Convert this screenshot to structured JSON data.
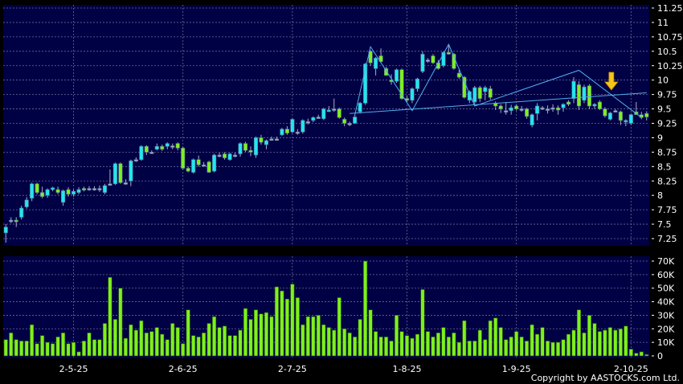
{
  "chart_data": [
    {
      "type": "candlestick",
      "colors": {
        "up": "#22e6f0",
        "down": "#7ef01e",
        "background": "#000044",
        "grid": "#6a6a9a",
        "trendline": "#4fb0f0",
        "arrow": "#f5c518"
      },
      "ylim": [
        7.25,
        11.25
      ],
      "y_ticks": [
        "11.25",
        "11",
        "10.75",
        "10.5",
        "10.25",
        "10",
        "9.75",
        "9.5",
        "9.25",
        "9",
        "8.75",
        "8.5",
        "8.25",
        "8",
        "7.75",
        "7.5",
        "7.25"
      ],
      "grid": true,
      "ohlc_columns": [
        "open",
        "high",
        "low",
        "close"
      ],
      "ohlc": [
        [
          7.35,
          7.5,
          7.18,
          7.45
        ],
        [
          7.57,
          7.62,
          7.52,
          7.57
        ],
        [
          7.57,
          7.62,
          7.45,
          7.55
        ],
        [
          7.62,
          7.82,
          7.58,
          7.78
        ],
        [
          7.8,
          7.97,
          7.77,
          7.92
        ],
        [
          7.95,
          8.22,
          7.9,
          8.2
        ],
        [
          8.2,
          8.22,
          8.02,
          8.05
        ],
        [
          8.05,
          8.15,
          7.95,
          7.98
        ],
        [
          8.0,
          8.12,
          7.96,
          8.1
        ],
        [
          8.1,
          8.15,
          8.07,
          8.13
        ],
        [
          8.1,
          8.15,
          8.02,
          8.05
        ],
        [
          7.88,
          8.1,
          7.82,
          8.08
        ],
        [
          8.1,
          8.14,
          7.98,
          8.02
        ],
        [
          8.02,
          8.1,
          7.98,
          8.07
        ],
        [
          8.05,
          8.14,
          8.02,
          8.1
        ],
        [
          8.12,
          8.15,
          8.07,
          8.1
        ],
        [
          8.12,
          8.16,
          8.08,
          8.12
        ],
        [
          8.12,
          8.16,
          8.08,
          8.12
        ],
        [
          8.12,
          8.17,
          8.06,
          8.12
        ],
        [
          8.05,
          8.2,
          8.02,
          8.17
        ],
        [
          8.2,
          8.45,
          8.17,
          8.2
        ],
        [
          8.2,
          8.57,
          8.18,
          8.55
        ],
        [
          8.55,
          8.57,
          8.2,
          8.22
        ],
        [
          8.22,
          8.28,
          8.18,
          8.22
        ],
        [
          8.25,
          8.62,
          8.16,
          8.6
        ],
        [
          8.62,
          8.66,
          8.58,
          8.62
        ],
        [
          8.62,
          8.87,
          8.6,
          8.85
        ],
        [
          8.85,
          8.87,
          8.7,
          8.75
        ],
        [
          8.75,
          8.78,
          8.72,
          8.75
        ],
        [
          8.8,
          8.9,
          8.78,
          8.85
        ],
        [
          8.85,
          8.88,
          8.77,
          8.8
        ],
        [
          8.85,
          8.92,
          8.8,
          8.9
        ],
        [
          8.86,
          8.9,
          8.8,
          8.86
        ],
        [
          8.9,
          8.92,
          8.78,
          8.82
        ],
        [
          8.82,
          8.84,
          8.45,
          8.47
        ],
        [
          8.47,
          8.5,
          8.4,
          8.42
        ],
        [
          8.4,
          8.64,
          8.38,
          8.62
        ],
        [
          8.62,
          8.69,
          8.5,
          8.53
        ],
        [
          8.53,
          8.58,
          8.5,
          8.53
        ],
        [
          8.58,
          8.6,
          8.39,
          8.4
        ],
        [
          8.42,
          8.72,
          8.4,
          8.7
        ],
        [
          8.7,
          8.74,
          8.66,
          8.7
        ],
        [
          8.72,
          8.75,
          8.62,
          8.65
        ],
        [
          8.62,
          8.74,
          8.6,
          8.72
        ],
        [
          8.7,
          8.74,
          8.66,
          8.7
        ],
        [
          8.72,
          8.92,
          8.67,
          8.9
        ],
        [
          8.9,
          8.93,
          8.75,
          8.78
        ],
        [
          8.78,
          8.85,
          8.68,
          8.75
        ],
        [
          8.7,
          9.02,
          8.65,
          9.0
        ],
        [
          9.0,
          9.05,
          8.88,
          8.92
        ],
        [
          8.88,
          8.97,
          8.8,
          8.95
        ],
        [
          8.98,
          9.02,
          8.95,
          8.98
        ],
        [
          8.98,
          9.02,
          8.95,
          8.98
        ],
        [
          9.05,
          9.17,
          9.03,
          9.15
        ],
        [
          9.15,
          9.2,
          9.05,
          9.08
        ],
        [
          9.1,
          9.33,
          9.08,
          9.32
        ],
        [
          9.1,
          9.15,
          9.05,
          9.1
        ],
        [
          9.1,
          9.32,
          9.07,
          9.3
        ],
        [
          9.28,
          9.33,
          9.23,
          9.28
        ],
        [
          9.3,
          9.37,
          9.27,
          9.35
        ],
        [
          9.36,
          9.4,
          9.33,
          9.36
        ],
        [
          9.33,
          9.52,
          9.31,
          9.5
        ],
        [
          9.46,
          9.55,
          9.45,
          9.48
        ],
        [
          9.5,
          9.68,
          9.45,
          9.5
        ],
        [
          9.5,
          9.52,
          9.33,
          9.35
        ],
        [
          9.32,
          9.35,
          9.2,
          9.25
        ],
        [
          9.25,
          9.28,
          9.2,
          9.25
        ],
        [
          9.25,
          9.4,
          9.24,
          9.36
        ],
        [
          9.45,
          9.62,
          9.42,
          9.6
        ],
        [
          9.6,
          10.3,
          9.57,
          10.28
        ],
        [
          10.5,
          10.52,
          10.25,
          10.3
        ],
        [
          10.2,
          10.4,
          10.08,
          10.38
        ],
        [
          10.42,
          10.55,
          10.3,
          10.32
        ],
        [
          10.2,
          10.23,
          10.08,
          10.08
        ],
        [
          10.0,
          10.1,
          9.92,
          9.98
        ],
        [
          9.98,
          10.2,
          9.95,
          10.18
        ],
        [
          10.18,
          10.2,
          9.66,
          9.68
        ],
        [
          9.68,
          9.72,
          9.62,
          9.65
        ],
        [
          9.65,
          9.87,
          9.6,
          9.85
        ],
        [
          9.85,
          10.04,
          9.8,
          10.02
        ],
        [
          10.15,
          10.5,
          10.12,
          10.45
        ],
        [
          10.35,
          10.38,
          10.3,
          10.35
        ],
        [
          10.42,
          10.45,
          10.28,
          10.3
        ],
        [
          10.3,
          10.35,
          10.18,
          10.2
        ],
        [
          10.25,
          10.5,
          10.22,
          10.48
        ],
        [
          10.48,
          10.62,
          10.44,
          10.45
        ],
        [
          10.45,
          10.47,
          10.18,
          10.2
        ],
        [
          10.12,
          10.18,
          10.02,
          10.05
        ],
        [
          10.05,
          10.07,
          9.68,
          9.7
        ],
        [
          9.65,
          9.82,
          9.6,
          9.8
        ],
        [
          9.62,
          9.9,
          9.58,
          9.87
        ],
        [
          9.87,
          9.9,
          9.62,
          9.68
        ],
        [
          9.8,
          9.9,
          9.65,
          9.87
        ],
        [
          9.85,
          9.9,
          9.66,
          9.7
        ],
        [
          9.6,
          9.63,
          9.48,
          9.55
        ],
        [
          9.55,
          9.58,
          9.43,
          9.5
        ],
        [
          9.47,
          9.62,
          9.4,
          9.47
        ],
        [
          9.47,
          9.57,
          9.4,
          9.52
        ],
        [
          9.55,
          9.58,
          9.47,
          9.5
        ],
        [
          9.5,
          9.55,
          9.45,
          9.5
        ],
        [
          9.5,
          9.52,
          9.33,
          9.37
        ],
        [
          9.22,
          9.42,
          9.18,
          9.4
        ],
        [
          9.42,
          9.6,
          9.3,
          9.55
        ],
        [
          9.52,
          9.55,
          9.48,
          9.52
        ],
        [
          9.5,
          9.56,
          9.42,
          9.5
        ],
        [
          9.52,
          9.58,
          9.45,
          9.52
        ],
        [
          9.52,
          9.56,
          9.4,
          9.48
        ],
        [
          9.52,
          9.6,
          9.45,
          9.58
        ],
        [
          9.62,
          9.65,
          9.55,
          9.58
        ],
        [
          9.68,
          10.05,
          9.6,
          9.98
        ],
        [
          9.92,
          9.98,
          9.48,
          9.55
        ],
        [
          9.65,
          9.92,
          9.6,
          9.88
        ],
        [
          9.9,
          9.93,
          9.5,
          9.55
        ],
        [
          9.55,
          9.6,
          9.5,
          9.58
        ],
        [
          9.62,
          9.65,
          9.48,
          9.5
        ],
        [
          9.5,
          9.53,
          9.35,
          9.38
        ],
        [
          9.32,
          9.45,
          9.3,
          9.43
        ],
        [
          9.47,
          9.5,
          9.44,
          9.47
        ],
        [
          9.45,
          9.47,
          9.22,
          9.3
        ],
        [
          9.28,
          9.32,
          9.2,
          9.3
        ],
        [
          9.25,
          9.42,
          9.22,
          9.4
        ],
        [
          9.45,
          9.62,
          9.4,
          9.4
        ],
        [
          9.4,
          9.45,
          9.32,
          9.35
        ],
        [
          9.42,
          9.46,
          9.3,
          9.36
        ]
      ]
    },
    {
      "type": "bar",
      "name": "volume",
      "ylim": [
        0,
        70000
      ],
      "y_ticks": [
        "70K",
        "60K",
        "50K",
        "40K",
        "30K",
        "20K",
        "10K",
        "0"
      ],
      "grid": true,
      "bar_color": "#7ef01e",
      "values_k": [
        12,
        17,
        12,
        11,
        11,
        23,
        9,
        15,
        10,
        9,
        14,
        17,
        9,
        10,
        3,
        11,
        17,
        12,
        12,
        24,
        58,
        27,
        50,
        13,
        23,
        19,
        26,
        17,
        18,
        21,
        16,
        12,
        24,
        21,
        9,
        34,
        15,
        14,
        17,
        24,
        29,
        21,
        22,
        15,
        15,
        19,
        35,
        27,
        34,
        31,
        32,
        29,
        51,
        48,
        42,
        53,
        43,
        23,
        29,
        29,
        30,
        23,
        21,
        19,
        43,
        20,
        17,
        14,
        27,
        70,
        34,
        18,
        14,
        14,
        11,
        30,
        18,
        15,
        13,
        16,
        49,
        18,
        14,
        17,
        21,
        14,
        17,
        10,
        26,
        11,
        11,
        19,
        12,
        26,
        28,
        21,
        12,
        14,
        18,
        14,
        11,
        23,
        16,
        21,
        11,
        10,
        10,
        12,
        16,
        19,
        34,
        17,
        30,
        24,
        18,
        19,
        21,
        19,
        20,
        22,
        5,
        2,
        3,
        1
      ],
      "x_ticks": [
        "2-5-25",
        "2-6-25",
        "2-7-25",
        "1-8-25",
        "1-9-25",
        "2-10-25"
      ]
    }
  ],
  "footer": {
    "copyright": "Copyright by AASTOCKS.com Ltd."
  }
}
